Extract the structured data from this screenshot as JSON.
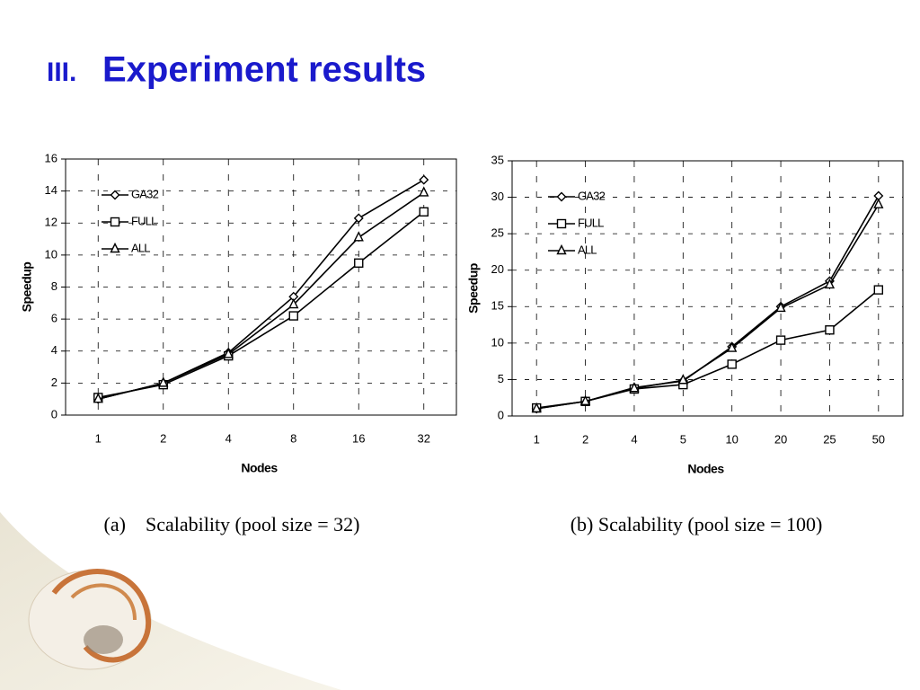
{
  "slide": {
    "number": "III.",
    "title": "Experiment results"
  },
  "chart_data": [
    {
      "type": "line",
      "caption": "(a)    Scalability (pool size = 32)",
      "x_label": "Nodes",
      "y_label": "Speedup",
      "categories": [
        "1",
        "2",
        "4",
        "8",
        "16",
        "32"
      ],
      "ylim": [
        0,
        16
      ],
      "yticks": [
        0,
        2,
        4,
        6,
        8,
        10,
        12,
        14,
        16
      ],
      "grid": true,
      "legend": "upper-left",
      "series": [
        {
          "name": "GA32",
          "color": "#000000",
          "marker": "diamond",
          "values": [
            1,
            2,
            3.9,
            7.4,
            12.3,
            14.7
          ]
        },
        {
          "name": "FULL",
          "color": "#000000",
          "marker": "square",
          "values": [
            1.1,
            1.9,
            3.7,
            6.2,
            9.5,
            12.7
          ]
        },
        {
          "name": "ALL",
          "color": "#000000",
          "marker": "triangle",
          "values": [
            1,
            2,
            3.8,
            6.9,
            11.1,
            13.9
          ]
        }
      ]
    },
    {
      "type": "line",
      "caption": "(b) Scalability (pool size = 100)",
      "x_label": "Nodes",
      "y_label": "Speedup",
      "categories": [
        "1",
        "2",
        "4",
        "5",
        "10",
        "20",
        "25",
        "50"
      ],
      "ylim": [
        0,
        35
      ],
      "yticks": [
        0,
        5,
        10,
        15,
        20,
        25,
        30,
        35
      ],
      "grid": true,
      "legend": "upper-left",
      "series": [
        {
          "name": "GA32",
          "color": "#000000",
          "marker": "diamond",
          "values": [
            1,
            2,
            3.9,
            4.8,
            9.5,
            15,
            18.5,
            30.2
          ]
        },
        {
          "name": "FULL",
          "color": "#000000",
          "marker": "square",
          "values": [
            1.1,
            2,
            3.7,
            4.3,
            7.1,
            10.4,
            11.8,
            17.3
          ]
        },
        {
          "name": "ALL",
          "color": "#000000",
          "marker": "triangle",
          "values": [
            1,
            2,
            3.8,
            4.9,
            9.3,
            14.8,
            18,
            29
          ]
        }
      ]
    }
  ]
}
